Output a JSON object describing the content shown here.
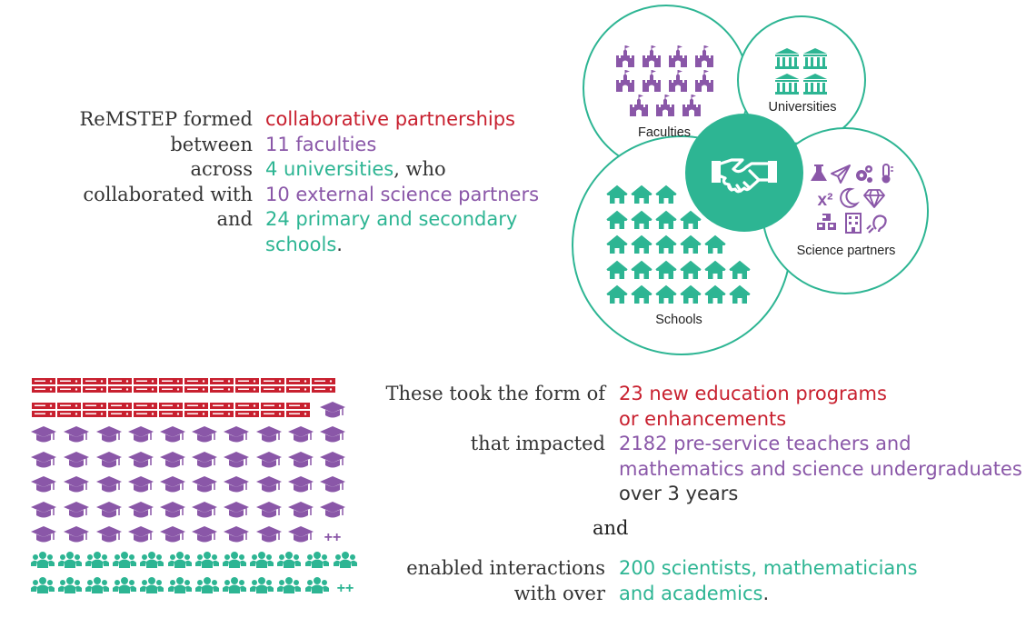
{
  "colors": {
    "red": "#c8202f",
    "purple": "#8a57a8",
    "teal": "#2db593",
    "text": "#333333"
  },
  "intro": {
    "labels": [
      "ReMSTEP formed",
      "between",
      "across",
      "collaborated with",
      "and"
    ],
    "collab": "collaborative partnerships",
    "faculties": "11 faculties",
    "universities": "4 universities",
    "who": ", who",
    "partners": "10 external science partners",
    "schools_line1": "24 primary and secondary",
    "schools_line2": "schools",
    "period": "."
  },
  "diagram": {
    "faculties_label": "Faculties",
    "universities_label": "Universities",
    "partners_label": "Science partners",
    "schools_label": "Schools",
    "center_icon": "handshake-icon",
    "faculty_icon": "castle-icon",
    "university_icon": "bank-icon",
    "school_icon": "house-icon",
    "partner_icons": [
      "flask-icon",
      "paper-plane-icon",
      "gears-icon",
      "thermometer-icon",
      "superscript-icon",
      "moon-icon",
      "diamond-icon",
      "cubes-icon",
      "building-icon",
      "assistive-listening-icon"
    ],
    "faculty_count": 11,
    "university_count": 4,
    "school_count": 24,
    "superscript_text": "x²"
  },
  "impact": {
    "label_form": "These took the form of",
    "programs_1": "23 new education programs",
    "programs_2": "or enhancements",
    "label_impacted": "that impacted",
    "teachers_1": "2182 pre-service teachers and",
    "teachers_2": "mathematics and science undergraduates",
    "teachers_3": "over 3 years",
    "and": "and",
    "label_enabled_1": "enabled interactions",
    "label_enabled_2": "with over",
    "scientists_1": "200 scientists, mathematicians",
    "scientists_2": "and academics",
    "period": "."
  },
  "pictogram": {
    "program_icon": "server-icon",
    "teacher_icon": "graduation-cap-icon",
    "scientist_icon": "people-group-icon",
    "teacher_more": "++",
    "scientist_more": "++"
  }
}
